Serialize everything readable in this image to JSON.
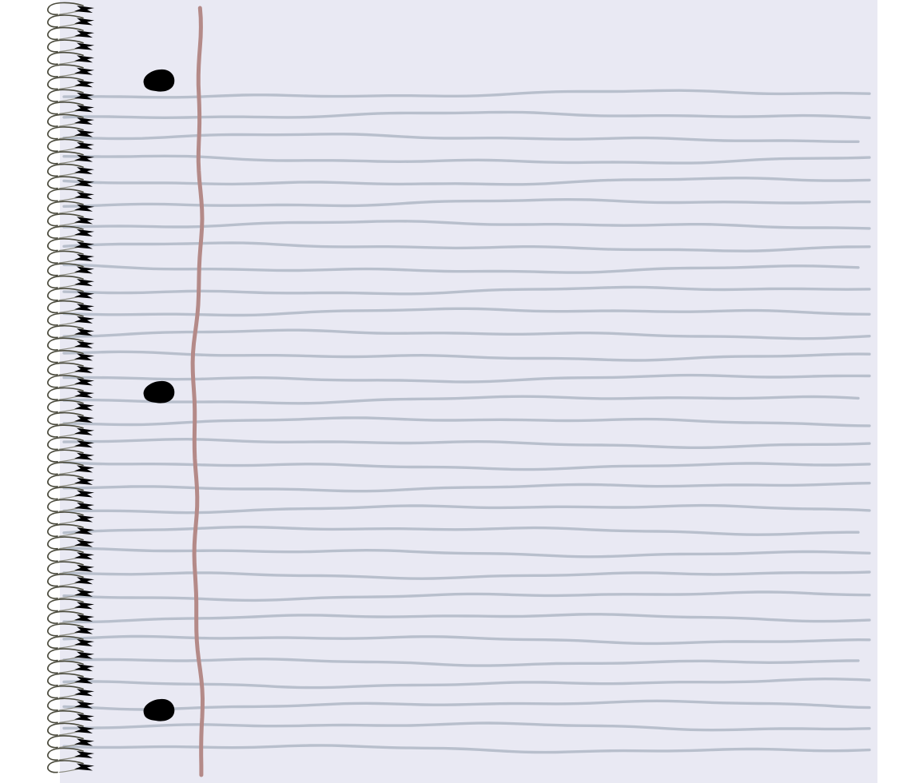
{
  "notebook": {
    "kind": "spiral-bound lined notebook page",
    "ruled_line_count": 31,
    "spiral_coil_count": 62,
    "punch_hole_count": 3
  },
  "colors": {
    "page": "#e9e9f3",
    "ruled_line": "#b8bfcc",
    "margin_line": "#b48a88",
    "punch_hole": "#000000",
    "spiral_wire": "#4a4a3c",
    "spiral_tip": "#000000",
    "background": "#ffffff"
  }
}
